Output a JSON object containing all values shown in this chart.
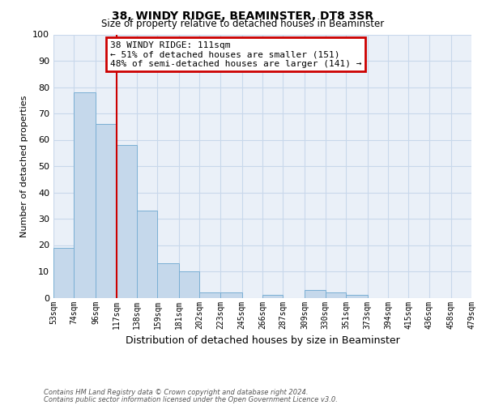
{
  "title": "38, WINDY RIDGE, BEAMINSTER, DT8 3SR",
  "subtitle": "Size of property relative to detached houses in Beaminster",
  "xlabel": "Distribution of detached houses by size in Beaminster",
  "ylabel": "Number of detached properties",
  "footnote1": "Contains HM Land Registry data © Crown copyright and database right 2024.",
  "footnote2": "Contains public sector information licensed under the Open Government Licence v3.0.",
  "bin_labels": [
    "53sqm",
    "74sqm",
    "96sqm",
    "117sqm",
    "138sqm",
    "159sqm",
    "181sqm",
    "202sqm",
    "223sqm",
    "245sqm",
    "266sqm",
    "287sqm",
    "309sqm",
    "330sqm",
    "351sqm",
    "373sqm",
    "394sqm",
    "415sqm",
    "436sqm",
    "458sqm",
    "479sqm"
  ],
  "bar_values": [
    19,
    78,
    66,
    58,
    33,
    13,
    10,
    2,
    2,
    0,
    1,
    0,
    3,
    2,
    1,
    0,
    0,
    0,
    0,
    0
  ],
  "bar_color": "#c5d8eb",
  "bar_edge_color": "#7aafd4",
  "vline_color": "#cc0000",
  "ylim": [
    0,
    100
  ],
  "annotation_title": "38 WINDY RIDGE: 111sqm",
  "annotation_line1": "← 51% of detached houses are smaller (151)",
  "annotation_line2": "48% of semi-detached houses are larger (141) →",
  "annotation_box_color": "#cc0000",
  "bin_edges": [
    53,
    74,
    96,
    117,
    138,
    159,
    181,
    202,
    223,
    245,
    266,
    287,
    309,
    330,
    351,
    373,
    394,
    415,
    436,
    458,
    479
  ],
  "background_color": "#eaf0f8",
  "plot_bg_color": "#ffffff",
  "grid_color": "#c8d8eb"
}
